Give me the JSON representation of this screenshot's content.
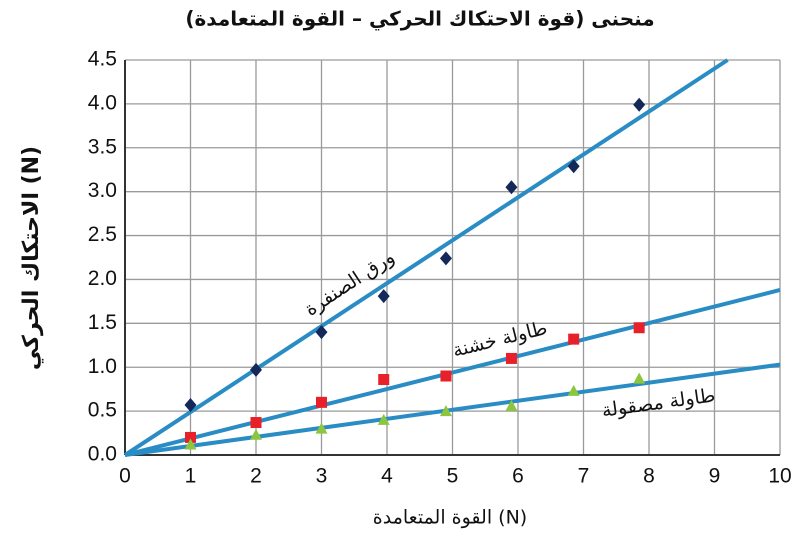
{
  "chart_data": {
    "type": "scatter",
    "title": "منحنى (قوة الاحتكاك الحركي – القوة المتعامدة)",
    "x_label": "القوة المتعامدة (N)",
    "y_label": "الاحتكاك الحركي (N)",
    "xlim": [
      0,
      10
    ],
    "ylim": [
      0,
      4.5
    ],
    "xticks": [
      0,
      1,
      2,
      3,
      4,
      5,
      6,
      7,
      8,
      9,
      10
    ],
    "yticks": [
      {
        "value": 0,
        "label": "0.0"
      },
      0.5,
      {
        "value": 1,
        "label": "1.0"
      },
      1.5,
      {
        "value": 2,
        "label": "2.0"
      },
      2.5,
      {
        "value": 3,
        "label": "3.0"
      },
      3.5,
      {
        "value": 4,
        "label": "4.0"
      },
      4.5
    ],
    "grid": true,
    "series": [
      {
        "name": "ورق الصنفرة",
        "color": "#14285a",
        "marker": "diamond",
        "line_color": "#2a8cc4",
        "x": [
          1,
          2,
          3,
          3.95,
          4.9,
          5.9,
          6.85,
          7.85
        ],
        "values": [
          0.57,
          0.97,
          1.4,
          1.81,
          2.24,
          3.05,
          3.29,
          3.99
        ],
        "fit": {
          "x": [
            0,
            9.2
          ],
          "values": [
            0,
            4.5
          ]
        }
      },
      {
        "name": "طاولة خشنة",
        "color": "#e8202a",
        "marker": "square",
        "line_color": "#2a8cc4",
        "x": [
          1,
          2,
          3,
          3.95,
          4.9,
          5.9,
          6.85,
          7.85
        ],
        "values": [
          0.2,
          0.37,
          0.6,
          0.86,
          0.9,
          1.1,
          1.32,
          1.45
        ],
        "fit": {
          "x": [
            0,
            10
          ],
          "values": [
            0,
            1.88
          ]
        }
      },
      {
        "name": "طاولة مصقولة",
        "color": "#8cc63f",
        "marker": "triangle",
        "line_color": "#2a8cc4",
        "x": [
          1,
          2,
          3,
          3.95,
          4.9,
          5.9,
          6.85,
          7.85
        ],
        "values": [
          0.12,
          0.23,
          0.3,
          0.4,
          0.5,
          0.56,
          0.73,
          0.87
        ],
        "fit": {
          "x": [
            0,
            10
          ],
          "values": [
            0,
            1.03
          ]
        }
      }
    ]
  }
}
